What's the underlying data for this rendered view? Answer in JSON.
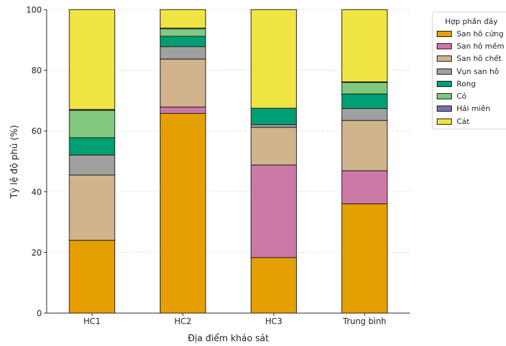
{
  "chart_data": {
    "type": "bar",
    "stacked": true,
    "xlabel": "Địa điểm khảo sát",
    "ylabel": "Tỷ lệ độ phủ (%)",
    "categories": [
      "HC1",
      "HC2",
      "HC3",
      "Trung bình"
    ],
    "ylim": [
      0,
      100
    ],
    "yticks": [
      0,
      20,
      40,
      60,
      80,
      100
    ],
    "grid": true,
    "legend_title": "Hợp phần đáy",
    "legend_placement": "top-right",
    "series": [
      {
        "name": "San hô cứng",
        "color": "#E69F00",
        "values": [
          24.0,
          65.8,
          18.3,
          36.0
        ]
      },
      {
        "name": "San hô mềm",
        "color": "#CC79A7",
        "values": [
          0.0,
          2.1,
          30.5,
          10.9
        ]
      },
      {
        "name": "San hô chết",
        "color": "#D2B48C",
        "values": [
          21.5,
          15.8,
          12.4,
          16.6
        ]
      },
      {
        "name": "Vụn san hô",
        "color": "#A0A0A0",
        "values": [
          6.6,
          4.1,
          0.9,
          3.9
        ]
      },
      {
        "name": "Rong",
        "color": "#009E73",
        "values": [
          5.7,
          3.4,
          5.4,
          4.8
        ]
      },
      {
        "name": "Cỏ",
        "color": "#80C97F",
        "values": [
          9.0,
          2.5,
          0.0,
          3.8
        ]
      },
      {
        "name": "Hải miên",
        "color": "#7570B3",
        "values": [
          0.3,
          0.2,
          0.0,
          0.2
        ]
      },
      {
        "name": "Cát",
        "color": "#F0E442",
        "values": [
          32.9,
          6.1,
          32.5,
          23.8
        ]
      }
    ]
  }
}
